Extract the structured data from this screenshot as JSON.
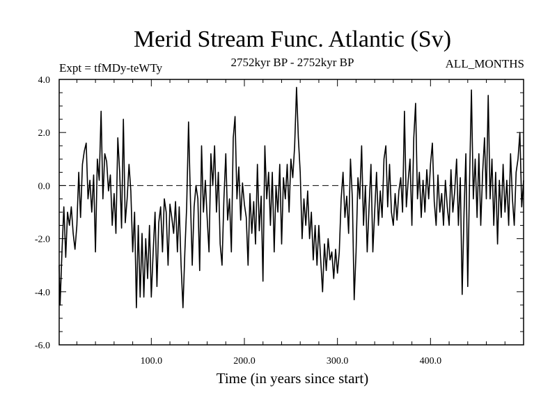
{
  "chart_data": {
    "type": "line",
    "title": "Merid Stream Func. Atlantic (Sv)",
    "subtitle": "2752kyr BP - 2752kyr BP",
    "experiment_label": "Expt = tfMDy-teWTy",
    "season_label": "ALL_MONTHS",
    "xlabel": "Time (in years since start)",
    "ylabel": "",
    "xlim": [
      1,
      500
    ],
    "ylim": [
      -6.0,
      4.0
    ],
    "x_ticks": [
      100,
      200,
      300,
      400
    ],
    "x_tick_labels": [
      "100.0",
      "200.0",
      "300.0",
      "400.0"
    ],
    "y_ticks": [
      4.0,
      2.0,
      0.0,
      -2.0,
      -4.0,
      -6.0
    ],
    "y_tick_labels": [
      "4.0",
      "2.0",
      "0.0",
      "-2.0",
      "-4.0",
      "-6.0"
    ],
    "reference_line": 0.0,
    "series": [
      {
        "name": "Merid Stream Func. Atlantic",
        "color": "#000000",
        "keypoints": [
          [
            1,
            -3.0
          ],
          [
            2,
            -4.5
          ],
          [
            4,
            -2.5
          ],
          [
            6,
            -0.8
          ],
          [
            8,
            -2.7
          ],
          [
            10,
            -1.0
          ],
          [
            12,
            -1.5
          ],
          [
            14,
            -0.8
          ],
          [
            16,
            -1.8
          ],
          [
            18,
            -2.4
          ],
          [
            20,
            -1.5
          ],
          [
            22,
            0.5
          ],
          [
            24,
            -1.2
          ],
          [
            26,
            0.8
          ],
          [
            28,
            1.3
          ],
          [
            30,
            1.6
          ],
          [
            32,
            -0.5
          ],
          [
            34,
            0.2
          ],
          [
            36,
            -1.0
          ],
          [
            38,
            0.4
          ],
          [
            40,
            -2.5
          ],
          [
            42,
            1.0
          ],
          [
            44,
            0.2
          ],
          [
            46,
            2.8
          ],
          [
            48,
            -0.5
          ],
          [
            50,
            1.2
          ],
          [
            52,
            0.9
          ],
          [
            54,
            -0.2
          ],
          [
            56,
            0.4
          ],
          [
            58,
            -1.5
          ],
          [
            60,
            -0.3
          ],
          [
            62,
            -1.8
          ],
          [
            64,
            1.8
          ],
          [
            66,
            0.5
          ],
          [
            68,
            -1.6
          ],
          [
            70,
            2.5
          ],
          [
            72,
            -1.4
          ],
          [
            74,
            -0.5
          ],
          [
            76,
            0.8
          ],
          [
            78,
            -0.2
          ],
          [
            80,
            -2.5
          ],
          [
            82,
            -1.0
          ],
          [
            84,
            -4.6
          ],
          [
            86,
            -1.5
          ],
          [
            88,
            -4.2
          ],
          [
            90,
            -1.8
          ],
          [
            92,
            -4.2
          ],
          [
            94,
            -2.0
          ],
          [
            96,
            -3.5
          ],
          [
            98,
            -1.5
          ],
          [
            100,
            -4.2
          ],
          [
            102,
            -2.5
          ],
          [
            104,
            -1.0
          ],
          [
            106,
            -3.8
          ],
          [
            108,
            -1.4
          ],
          [
            110,
            -0.8
          ],
          [
            112,
            -2.5
          ],
          [
            114,
            -0.5
          ],
          [
            116,
            -1.0
          ],
          [
            118,
            -3.0
          ],
          [
            120,
            -0.7
          ],
          [
            122,
            -1.2
          ],
          [
            124,
            -1.8
          ],
          [
            126,
            -0.6
          ],
          [
            128,
            -2.5
          ],
          [
            130,
            -0.8
          ],
          [
            132,
            -3.0
          ],
          [
            134,
            -4.6
          ],
          [
            136,
            -2.5
          ],
          [
            138,
            -0.8
          ],
          [
            140,
            2.4
          ],
          [
            142,
            -0.5
          ],
          [
            144,
            -3.0
          ],
          [
            146,
            -0.8
          ],
          [
            148,
            0.0
          ],
          [
            150,
            -0.5
          ],
          [
            152,
            -3.2
          ],
          [
            154,
            1.5
          ],
          [
            156,
            -1.0
          ],
          [
            158,
            0.2
          ],
          [
            160,
            -1.2
          ],
          [
            162,
            -2.5
          ],
          [
            164,
            1.2
          ],
          [
            166,
            0.0
          ],
          [
            168,
            1.5
          ],
          [
            170,
            -1.0
          ],
          [
            172,
            0.5
          ],
          [
            174,
            -2.2
          ],
          [
            176,
            -3.0
          ],
          [
            178,
            -0.5
          ],
          [
            180,
            1.2
          ],
          [
            182,
            -1.3
          ],
          [
            184,
            -0.5
          ],
          [
            186,
            -2.5
          ],
          [
            188,
            1.8
          ],
          [
            190,
            2.6
          ],
          [
            192,
            -0.5
          ],
          [
            194,
            0.7
          ],
          [
            196,
            -1.3
          ],
          [
            198,
            0.1
          ],
          [
            200,
            -0.7
          ],
          [
            202,
            -1.2
          ],
          [
            204,
            -3.0
          ],
          [
            206,
            -0.3
          ],
          [
            208,
            -1.8
          ],
          [
            210,
            -0.6
          ],
          [
            212,
            -2.2
          ],
          [
            214,
            0.8
          ],
          [
            216,
            -1.7
          ],
          [
            218,
            -0.4
          ],
          [
            220,
            -3.6
          ],
          [
            222,
            1.5
          ],
          [
            224,
            -0.5
          ],
          [
            226,
            0.5
          ],
          [
            228,
            -1.5
          ],
          [
            230,
            0.5
          ],
          [
            232,
            -2.5
          ],
          [
            234,
            0.0
          ],
          [
            236,
            -1.0
          ],
          [
            238,
            0.8
          ],
          [
            240,
            -2.2
          ],
          [
            242,
            0.3
          ],
          [
            244,
            -0.5
          ],
          [
            246,
            0.8
          ],
          [
            248,
            -1.0
          ],
          [
            250,
            1.0
          ],
          [
            252,
            0.3
          ],
          [
            254,
            1.5
          ],
          [
            256,
            3.7
          ],
          [
            258,
            1.8
          ],
          [
            260,
            0.5
          ],
          [
            262,
            -2.0
          ],
          [
            264,
            -0.5
          ],
          [
            266,
            -1.5
          ],
          [
            268,
            -0.2
          ],
          [
            270,
            -2.0
          ],
          [
            272,
            -1.0
          ],
          [
            274,
            -2.8
          ],
          [
            276,
            -1.5
          ],
          [
            278,
            -3.0
          ],
          [
            280,
            -1.5
          ],
          [
            282,
            -2.8
          ],
          [
            284,
            -4.0
          ],
          [
            286,
            -2.2
          ],
          [
            288,
            -3.2
          ],
          [
            290,
            -2.0
          ],
          [
            292,
            -2.8
          ],
          [
            294,
            -2.5
          ],
          [
            296,
            -3.5
          ],
          [
            298,
            -2.4
          ],
          [
            300,
            -3.3
          ],
          [
            302,
            -2.5
          ],
          [
            304,
            -0.5
          ],
          [
            306,
            0.5
          ],
          [
            308,
            -1.2
          ],
          [
            310,
            -0.4
          ],
          [
            312,
            -1.8
          ],
          [
            314,
            1.0
          ],
          [
            316,
            -0.5
          ],
          [
            318,
            -4.3
          ],
          [
            320,
            -2.5
          ],
          [
            322,
            0.3
          ],
          [
            324,
            -0.5
          ],
          [
            326,
            1.5
          ],
          [
            328,
            -1.5
          ],
          [
            330,
            0.0
          ],
          [
            332,
            -2.5
          ],
          [
            334,
            -0.8
          ],
          [
            336,
            0.8
          ],
          [
            338,
            -2.5
          ],
          [
            340,
            -1.0
          ],
          [
            342,
            0.5
          ],
          [
            344,
            -1.5
          ],
          [
            346,
            -0.2
          ],
          [
            348,
            -1.2
          ],
          [
            350,
            1.0
          ],
          [
            352,
            1.5
          ],
          [
            354,
            -0.8
          ],
          [
            356,
            0.8
          ],
          [
            358,
            -1.0
          ],
          [
            360,
            -1.5
          ],
          [
            362,
            -0.3
          ],
          [
            364,
            -1.3
          ],
          [
            366,
            -0.2
          ],
          [
            368,
            0.3
          ],
          [
            370,
            -1.0
          ],
          [
            372,
            2.8
          ],
          [
            374,
            -0.8
          ],
          [
            376,
            0.2
          ],
          [
            378,
            1.0
          ],
          [
            380,
            -1.5
          ],
          [
            382,
            1.8
          ],
          [
            384,
            3.1
          ],
          [
            386,
            -0.5
          ],
          [
            388,
            0.5
          ],
          [
            390,
            -1.2
          ],
          [
            392,
            0.2
          ],
          [
            394,
            -1.0
          ],
          [
            396,
            0.6
          ],
          [
            398,
            -0.5
          ],
          [
            400,
            0.8
          ],
          [
            402,
            1.6
          ],
          [
            404,
            -0.6
          ],
          [
            406,
            -1.5
          ],
          [
            408,
            0.4
          ],
          [
            410,
            -1.0
          ],
          [
            412,
            -0.3
          ],
          [
            414,
            -1.5
          ],
          [
            416,
            0.2
          ],
          [
            418,
            -0.8
          ],
          [
            420,
            -1.5
          ],
          [
            422,
            0.6
          ],
          [
            424,
            -1.0
          ],
          [
            426,
            -0.2
          ],
          [
            428,
            1.0
          ],
          [
            430,
            -1.5
          ],
          [
            432,
            0.3
          ],
          [
            434,
            -4.1
          ],
          [
            436,
            -1.0
          ],
          [
            438,
            1.2
          ],
          [
            440,
            -3.8
          ],
          [
            442,
            0.3
          ],
          [
            444,
            3.6
          ],
          [
            446,
            -0.5
          ],
          [
            448,
            1.0
          ],
          [
            450,
            -1.2
          ],
          [
            452,
            1.2
          ],
          [
            454,
            -1.5
          ],
          [
            456,
            0.5
          ],
          [
            458,
            1.8
          ],
          [
            460,
            -0.5
          ],
          [
            462,
            3.4
          ],
          [
            464,
            -0.5
          ],
          [
            466,
            1.0
          ],
          [
            468,
            -1.5
          ],
          [
            470,
            0.5
          ],
          [
            472,
            -2.2
          ],
          [
            474,
            0.2
          ],
          [
            476,
            -1.2
          ],
          [
            478,
            0.8
          ],
          [
            480,
            -1.0
          ],
          [
            482,
            0.2
          ],
          [
            484,
            -1.5
          ],
          [
            486,
            1.2
          ],
          [
            488,
            -0.5
          ],
          [
            490,
            -1.5
          ],
          [
            492,
            0.5
          ],
          [
            494,
            1.0
          ],
          [
            496,
            2.0
          ],
          [
            498,
            -0.8
          ],
          [
            500,
            0.2
          ]
        ]
      }
    ]
  }
}
